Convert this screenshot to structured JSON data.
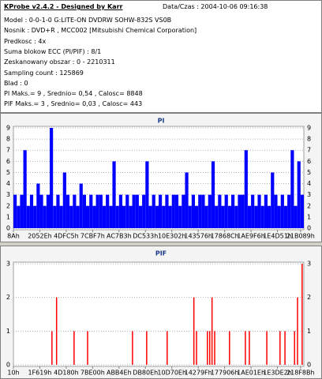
{
  "header": {
    "title": "KProbe v2.4.2 - Designed by Karr",
    "datetime": "Data/Czas : 2004-10-06 09:16:38",
    "lines": [
      "Model : 0-0-1-0 G:LITE-ON DVDRW SOHW-832S  VS0B",
      "Nosnik : DVD+R , MCC002 [Mitsubishi Chemical Corporation]",
      "Predkosc : 4x",
      "Suma blokow ECC (PI/PIF) : 8/1",
      "Zeskanowany obszar : 0 - 2210311",
      "Sampling count : 125869",
      "Blad : 0",
      "PI Maks.= 9 , Srednio= 0,54 , Calosc= 8848",
      "PIF Maks.= 3 , Srednio= 0,03 , Calosc= 443"
    ]
  },
  "chart_data": [
    {
      "type": "bar",
      "title": "PI",
      "color": "#0000ff",
      "grid": true,
      "x": [
        0,
        1,
        2,
        3,
        4,
        5,
        6,
        7,
        8,
        9,
        10,
        11,
        12,
        13,
        14,
        15,
        16,
        17,
        18,
        19,
        20,
        21,
        22,
        23,
        24,
        25,
        26,
        27,
        28,
        29,
        30,
        31,
        32,
        33,
        34,
        35,
        36,
        37,
        38,
        39,
        40,
        41,
        42,
        43,
        44,
        45,
        46,
        47,
        48,
        49,
        50,
        51,
        52,
        53,
        54,
        55,
        56,
        57,
        58,
        59,
        60,
        61,
        62,
        63,
        64,
        65,
        66,
        67,
        68,
        69,
        70,
        71,
        72,
        73,
        74,
        75,
        76,
        77,
        78,
        79,
        80,
        81,
        82,
        83,
        84,
        85,
        86,
        87
      ],
      "values": [
        3,
        2,
        3,
        7,
        2,
        3,
        2,
        4,
        3,
        2,
        3,
        9,
        2,
        3,
        2,
        5,
        3,
        2,
        3,
        2,
        4,
        3,
        2,
        3,
        2,
        3,
        3,
        2,
        3,
        2,
        6,
        2,
        3,
        2,
        3,
        2,
        3,
        3,
        2,
        3,
        6,
        2,
        3,
        2,
        3,
        2,
        3,
        2,
        3,
        3,
        2,
        3,
        5,
        2,
        3,
        2,
        3,
        3,
        2,
        3,
        6,
        2,
        3,
        2,
        3,
        2,
        3,
        2,
        3,
        3,
        7,
        2,
        3,
        2,
        3,
        2,
        3,
        2,
        5,
        3,
        2,
        3,
        2,
        3,
        7,
        2,
        6,
        3
      ],
      "xlim": [
        0,
        88
      ],
      "ylim": [
        0,
        9
      ],
      "yticks": [
        0,
        1,
        2,
        3,
        4,
        5,
        6,
        7,
        8,
        9
      ],
      "xticks": [
        {
          "value": 0,
          "label": "8Ah"
        },
        {
          "value": 8,
          "label": "2052Eh"
        },
        {
          "value": 16,
          "label": "4DFC5h"
        },
        {
          "value": 24,
          "label": "7CBF7h"
        },
        {
          "value": 32,
          "label": "AC7B3h"
        },
        {
          "value": 40,
          "label": "DC533h"
        },
        {
          "value": 48,
          "label": "10E302h"
        },
        {
          "value": 56,
          "label": "143576h"
        },
        {
          "value": 64,
          "label": "17868Ch"
        },
        {
          "value": 72,
          "label": "1AE9F6h"
        },
        {
          "value": 80,
          "label": "1E4D51h"
        },
        {
          "value": 87,
          "label": "21B089h"
        }
      ]
    },
    {
      "type": "bar",
      "title": "PIF",
      "color": "#ff0000",
      "grid": true,
      "x": [
        11.5,
        12.9,
        18.2,
        22.3,
        35.9,
        40.2,
        46.4,
        54.5,
        55.3,
        58.6,
        59.3,
        60,
        60.8,
        65.3,
        70.1,
        71.3,
        76.6,
        80.6,
        82.1,
        85,
        85.9,
        87.3
      ],
      "values": [
        1,
        2,
        1,
        1,
        1,
        1,
        1,
        2,
        1,
        1,
        1,
        2,
        1,
        1,
        1,
        1,
        1,
        1,
        1,
        1,
        2,
        3
      ],
      "xlim": [
        0,
        88
      ],
      "ylim": [
        0,
        3
      ],
      "yticks": [
        0,
        1,
        2,
        3
      ],
      "xticks": [
        {
          "value": 0,
          "label": "10h"
        },
        {
          "value": 8,
          "label": "1F619h"
        },
        {
          "value": 16,
          "label": "4D180h"
        },
        {
          "value": 24,
          "label": "7BE00h"
        },
        {
          "value": 32,
          "label": "ABB4Eh"
        },
        {
          "value": 40,
          "label": "DB80Eh"
        },
        {
          "value": 48,
          "label": "10D70Eh"
        },
        {
          "value": 56,
          "label": "14279Fh"
        },
        {
          "value": 64,
          "label": "177906h"
        },
        {
          "value": 72,
          "label": "1AE01Eh"
        },
        {
          "value": 80,
          "label": "1E3DE2h"
        },
        {
          "value": 87,
          "label": "218F8Bh"
        }
      ]
    }
  ]
}
